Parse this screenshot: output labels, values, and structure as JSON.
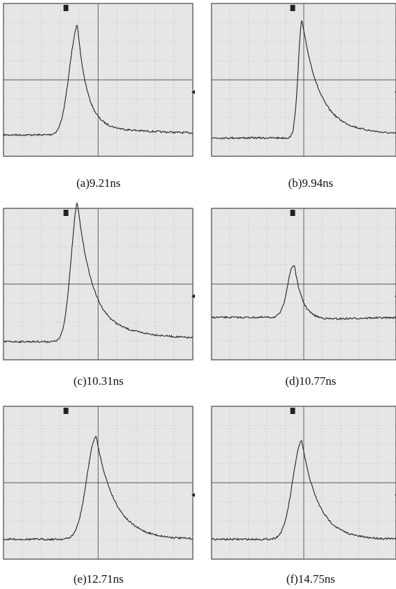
{
  "panels": [
    {
      "caption": "(a)9.21ns"
    },
    {
      "caption": "(b)9.94ns"
    },
    {
      "caption": "(c)10.31ns"
    },
    {
      "caption": "(d)10.77ns"
    },
    {
      "caption": "(e)12.71ns"
    },
    {
      "caption": "(f)14.75ns"
    }
  ]
}
